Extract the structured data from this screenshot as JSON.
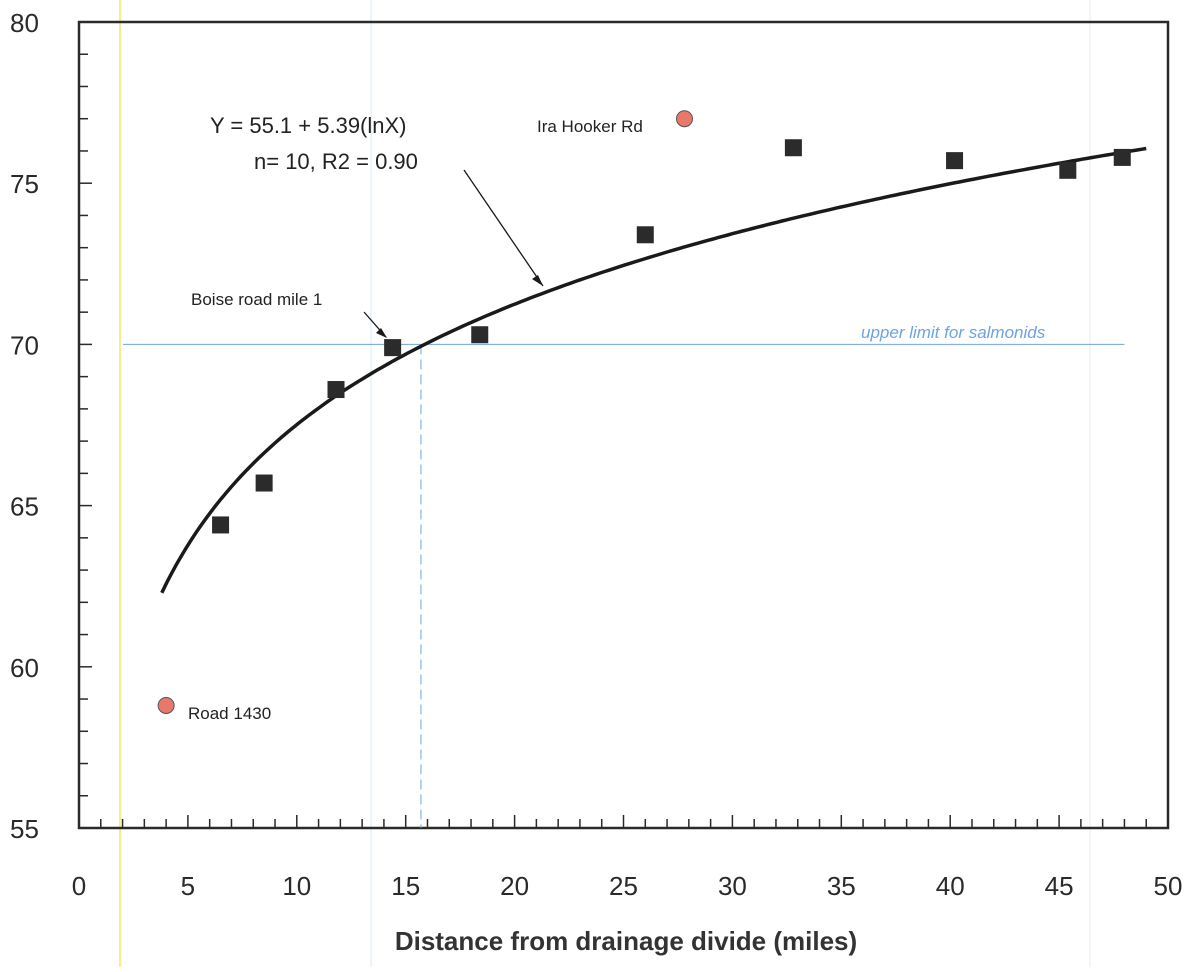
{
  "chart_data": {
    "type": "scatter",
    "xlabel": "Distance from drainage divide (miles)",
    "ylabel": "",
    "xlim": [
      0,
      50
    ],
    "ylim": [
      55,
      80
    ],
    "x_ticks": [
      0,
      5,
      10,
      15,
      20,
      25,
      30,
      35,
      40,
      45,
      50
    ],
    "y_ticks": [
      55,
      60,
      65,
      70,
      75,
      80
    ],
    "x_tick_labels": [
      "0",
      "5",
      "10",
      "15",
      "20",
      "25",
      "30",
      "35",
      "40",
      "45",
      "50"
    ],
    "y_tick_labels": [
      "55",
      "60",
      "65",
      "70",
      "75",
      "80"
    ],
    "grid": false,
    "series": [
      {
        "marker": "square",
        "color": "#2b2b2b",
        "points": [
          {
            "x": 6.5,
            "y": 64.4
          },
          {
            "x": 8.5,
            "y": 65.7
          },
          {
            "x": 11.8,
            "y": 68.6
          },
          {
            "x": 14.4,
            "y": 69.9
          },
          {
            "x": 18.4,
            "y": 70.3
          },
          {
            "x": 26.0,
            "y": 73.4
          },
          {
            "x": 32.8,
            "y": 76.1
          },
          {
            "x": 40.2,
            "y": 75.7
          },
          {
            "x": 45.4,
            "y": 75.4
          },
          {
            "x": 47.9,
            "y": 75.8
          }
        ]
      },
      {
        "marker": "circle",
        "color": "#e8786a",
        "points": [
          {
            "x": 4.0,
            "y": 58.8,
            "label": "Road 1430"
          },
          {
            "x": 27.8,
            "y": 77.0,
            "label": "Ira Hooker Rd"
          }
        ]
      }
    ],
    "fit": {
      "type": "log",
      "a": 55.1,
      "b": 5.39,
      "x_range": [
        3.8,
        49.0
      ],
      "color": "#1a1a1a",
      "equation_label": "Y = 55.1 + 5.39(lnX)",
      "stats_label": "n= 10, R2 = 0.90"
    },
    "reference_line": {
      "y": 70,
      "x_end": 48,
      "label": "upper limit for salmonids",
      "color": "#6fa3e0"
    },
    "reference_vline": {
      "x": 15.7,
      "color": "#6fa3e0"
    },
    "annotations": [
      {
        "text": "Boise road mile 1",
        "arrow_to": {
          "x": 14.2,
          "y": 70.4
        }
      }
    ]
  }
}
